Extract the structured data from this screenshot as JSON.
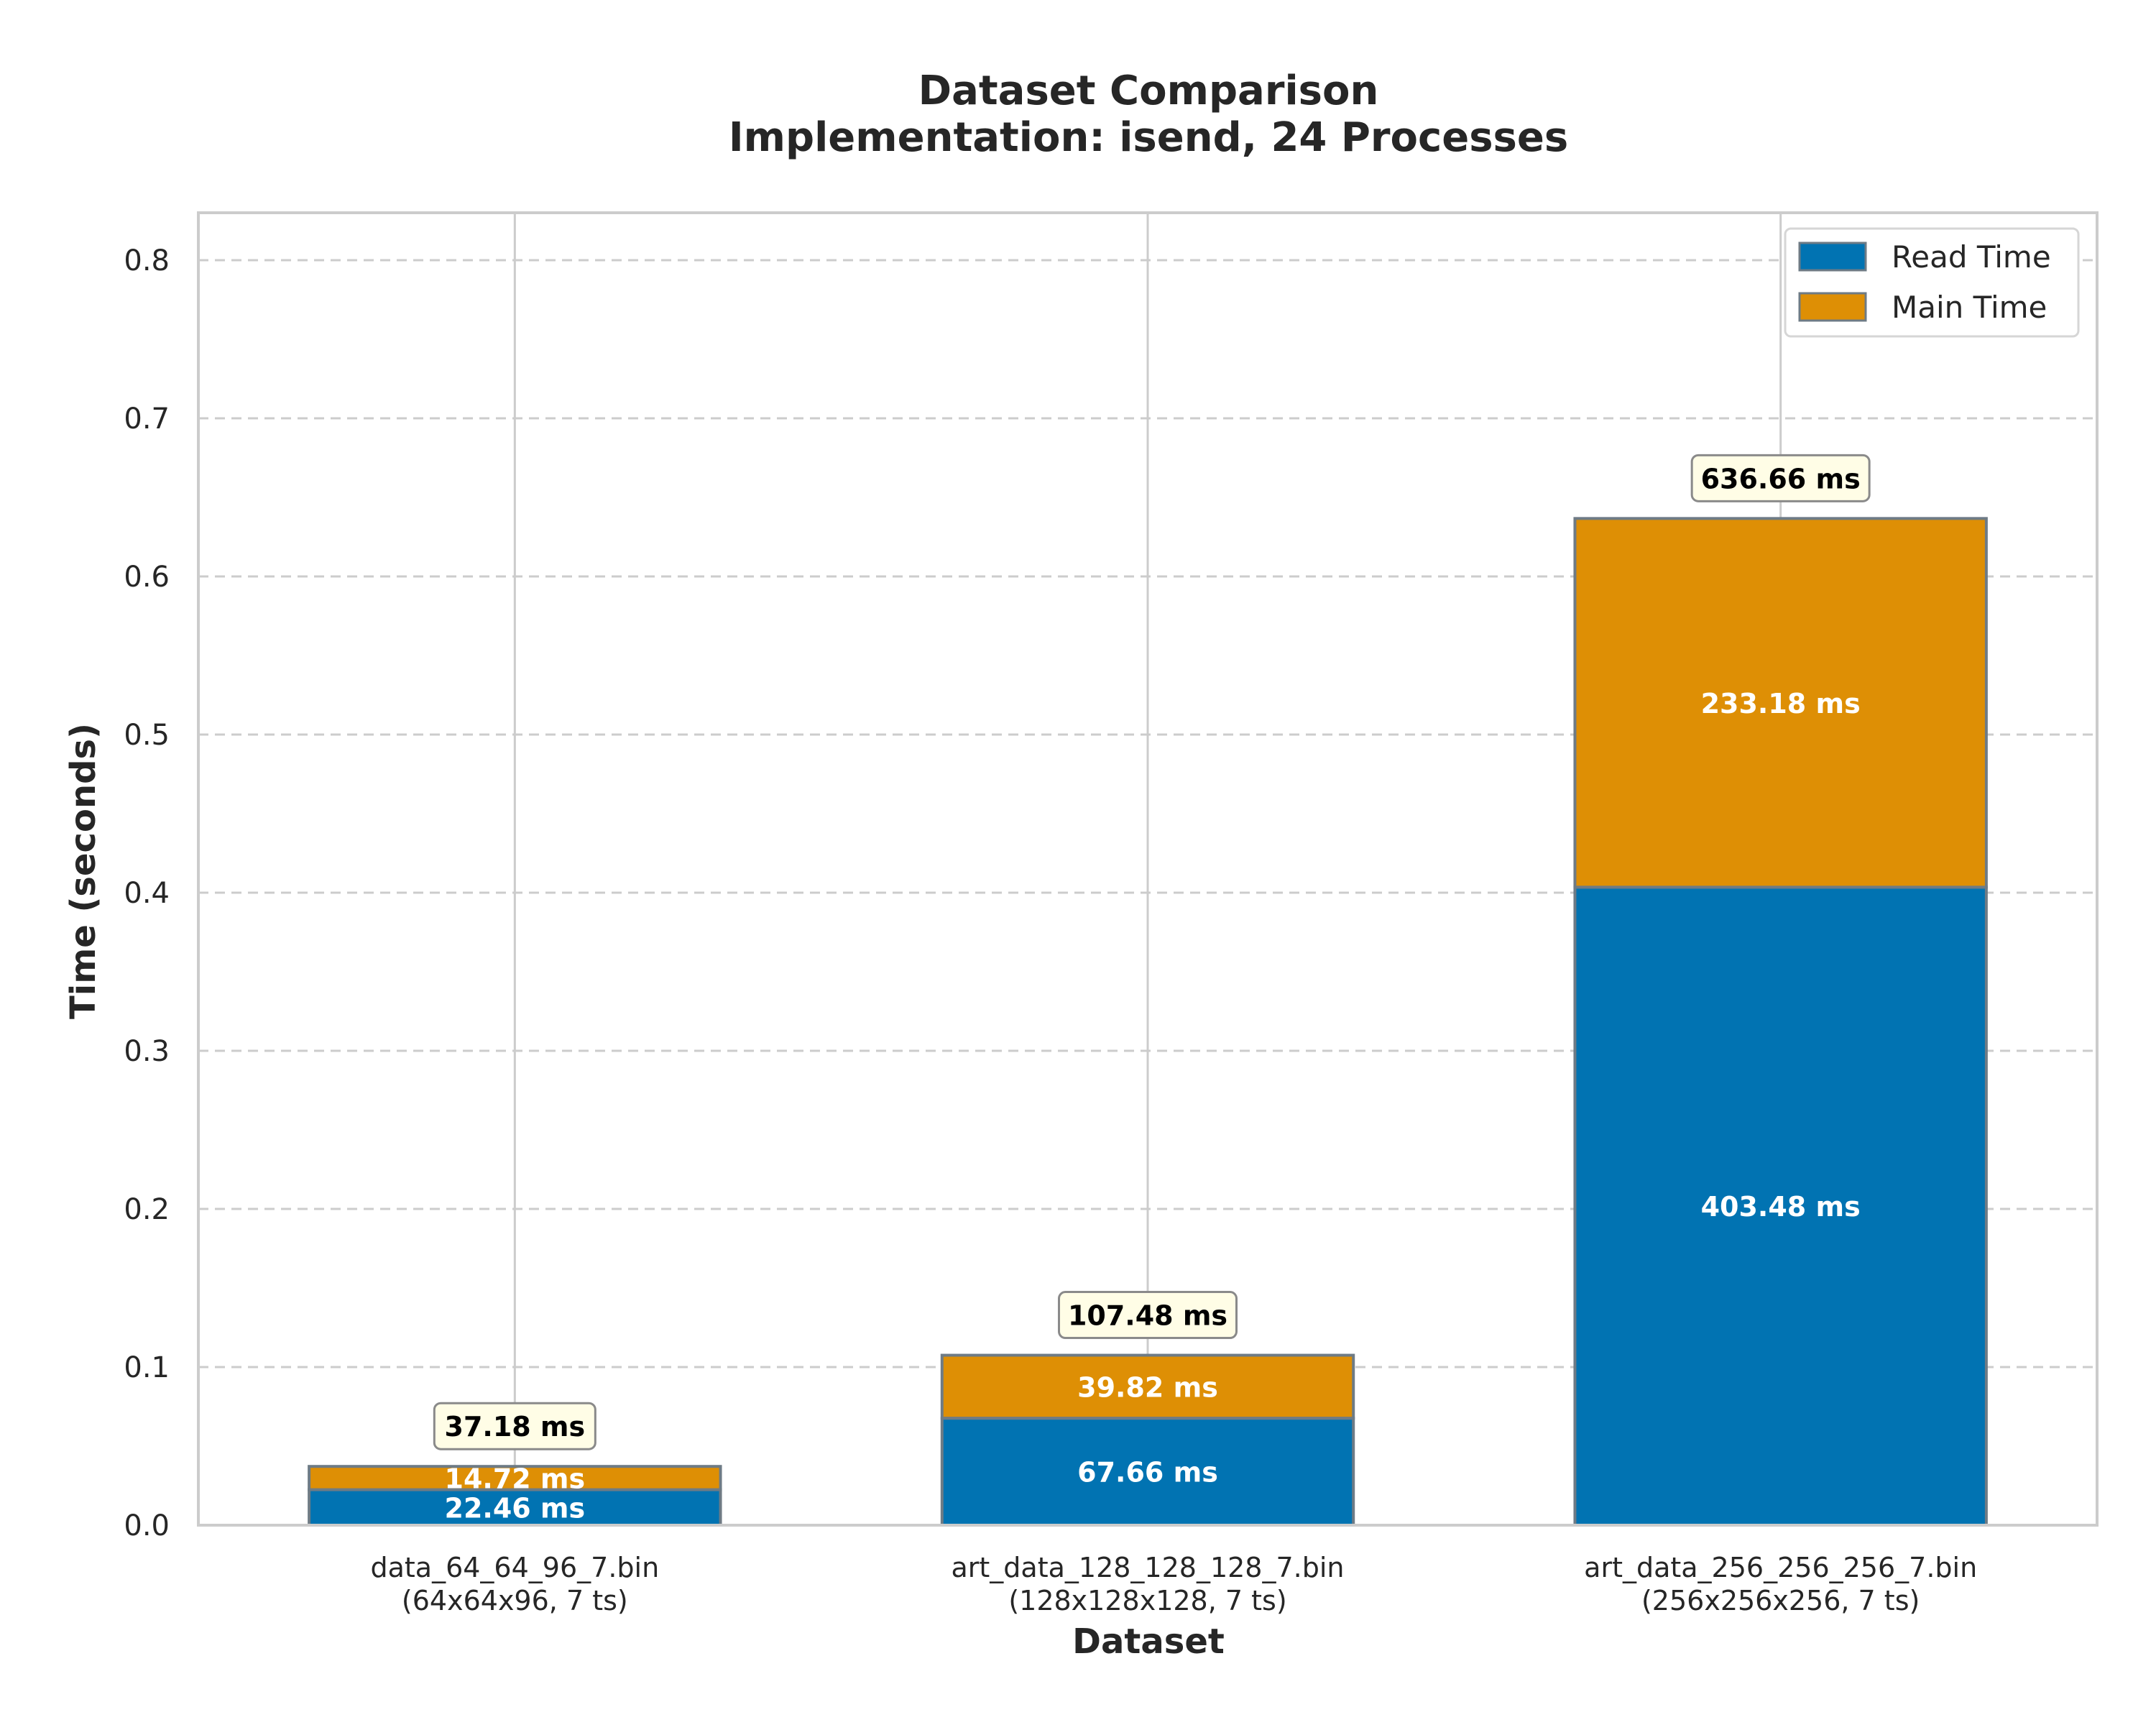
{
  "chart_data": {
    "type": "bar",
    "stacked": true,
    "title": "Dataset Comparison",
    "subtitle": "Implementation: isend, 24 Processes",
    "xlabel": "Dataset",
    "ylabel": "Time (seconds)",
    "ylim": [
      0,
      0.83
    ],
    "yticks": [
      "0.0",
      "0.1",
      "0.2",
      "0.3",
      "0.4",
      "0.5",
      "0.6",
      "0.7",
      "0.8"
    ],
    "grid": true,
    "legend_position": "top-right",
    "categories": [
      {
        "name": "data_64_64_96_7.bin",
        "detail": "(64x64x96, 7 ts)"
      },
      {
        "name": "art_data_128_128_128_7.bin",
        "detail": "(128x128x128, 7 ts)"
      },
      {
        "name": "art_data_256_256_256_7.bin",
        "detail": "(256x256x256, 7 ts)"
      }
    ],
    "series": [
      {
        "name": "Read Time",
        "color": "#0173b2",
        "values": [
          0.02246,
          0.06766,
          0.40348
        ],
        "labels": [
          "22.46 ms",
          "67.66 ms",
          "403.48 ms"
        ]
      },
      {
        "name": "Main Time",
        "color": "#de8f05",
        "values": [
          0.01472,
          0.03982,
          0.23318
        ],
        "labels": [
          "14.72 ms",
          "39.82 ms",
          "233.18 ms"
        ]
      }
    ],
    "totals": [
      "37.18 ms",
      "107.48 ms",
      "636.66 ms"
    ]
  }
}
